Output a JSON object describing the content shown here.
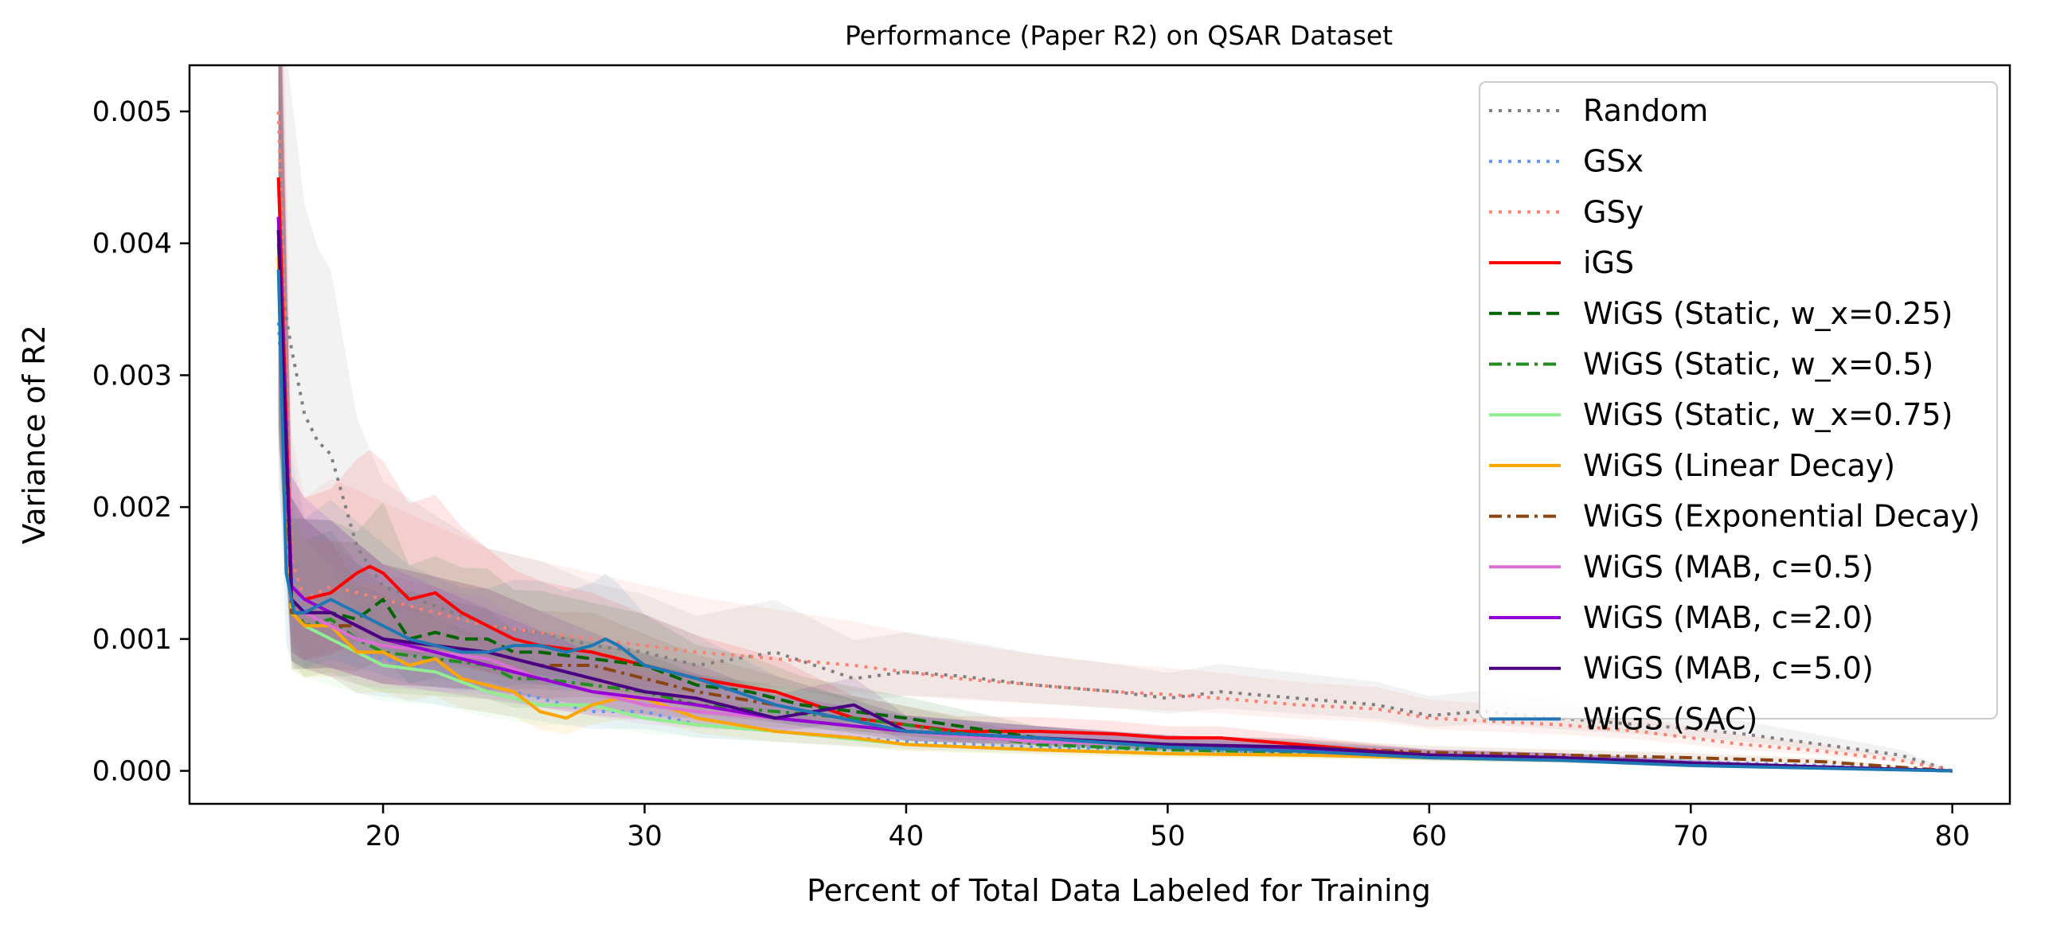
{
  "chart_data": {
    "type": "line",
    "title": "Performance (Paper R2) on QSAR Dataset",
    "xlabel": "Percent of Total Data Labeled for Training",
    "ylabel": "Variance of R2",
    "xlim": [
      12.6,
      82.2
    ],
    "ylim": [
      -0.00025,
      0.00535
    ],
    "xticks": [
      20,
      30,
      40,
      50,
      60,
      70,
      80
    ],
    "xtick_labels": [
      "20",
      "30",
      "40",
      "50",
      "60",
      "70",
      "80"
    ],
    "yticks": [
      0.0,
      0.001,
      0.002,
      0.003,
      0.004,
      0.005
    ],
    "ytick_labels": [
      "0.000",
      "0.001",
      "0.002",
      "0.003",
      "0.004",
      "0.005"
    ],
    "grid": false,
    "legend_position": "top-right",
    "shaded_bands": true,
    "series": [
      {
        "name": "Random",
        "color": "#808080",
        "dash": "dotted",
        "x": [
          16,
          16.5,
          17,
          17.5,
          18,
          19,
          20,
          22,
          24,
          26,
          28,
          30,
          32,
          35,
          38,
          40,
          42,
          45,
          48,
          50,
          52,
          55,
          58,
          60,
          62,
          65,
          68,
          70,
          72,
          75,
          78,
          80
        ],
        "y": [
          0.0038,
          0.0032,
          0.0027,
          0.0025,
          0.0024,
          0.0017,
          0.0014,
          0.00125,
          0.0011,
          0.00105,
          0.00095,
          0.0009,
          0.0008,
          0.0009,
          0.0007,
          0.00075,
          0.00072,
          0.00065,
          0.0006,
          0.00055,
          0.0006,
          0.00055,
          0.0005,
          0.00042,
          0.00045,
          0.0004,
          0.00035,
          0.00032,
          0.00028,
          0.0002,
          0.00012,
          0.0
        ]
      },
      {
        "name": "GSx",
        "color": "#6495ED",
        "dash": "dotted",
        "x": [
          16,
          16.5,
          17,
          18,
          19,
          20,
          22,
          24,
          26,
          28,
          30,
          32,
          35,
          40,
          45,
          50,
          55,
          60,
          65,
          70,
          75,
          80
        ],
        "y": [
          0.0034,
          0.0015,
          0.0012,
          0.0011,
          0.0009,
          0.00085,
          0.00075,
          0.00065,
          0.00055,
          0.00045,
          0.00045,
          0.00035,
          0.0003,
          0.00022,
          0.00018,
          0.00016,
          0.00014,
          0.00011,
          0.0001,
          7e-05,
          4e-05,
          0.0
        ]
      },
      {
        "name": "GSy",
        "color": "#FA8072",
        "dash": "dotted",
        "x": [
          16,
          16.5,
          17,
          18,
          20,
          22,
          24,
          26,
          28,
          30,
          32,
          35,
          38,
          40,
          42,
          45,
          48,
          50,
          52,
          55,
          58,
          60,
          62,
          65,
          68,
          70,
          72,
          75,
          78,
          80
        ],
        "y": [
          0.005,
          0.0016,
          0.0013,
          0.0014,
          0.0013,
          0.0012,
          0.0011,
          0.00105,
          0.001,
          0.00095,
          0.0009,
          0.00085,
          0.0008,
          0.00075,
          0.0007,
          0.00065,
          0.0006,
          0.00058,
          0.00055,
          0.0005,
          0.00047,
          0.0004,
          0.00038,
          0.00035,
          0.0003,
          0.00025,
          0.0002,
          0.00015,
          8e-05,
          0.0
        ]
      },
      {
        "name": "iGS",
        "color": "#FF0000",
        "dash": "solid",
        "x": [
          16,
          16.5,
          17,
          18,
          19,
          19.5,
          20,
          21,
          22,
          23,
          24,
          25,
          26,
          28,
          30,
          32,
          35,
          38,
          40,
          42,
          45,
          48,
          50,
          52,
          55,
          58,
          60,
          65,
          70,
          75,
          80
        ],
        "y": [
          0.0045,
          0.0014,
          0.0013,
          0.00135,
          0.0015,
          0.00155,
          0.0015,
          0.0013,
          0.00135,
          0.0012,
          0.0011,
          0.001,
          0.00095,
          0.0009,
          0.0008,
          0.0007,
          0.0006,
          0.0004,
          0.00035,
          0.0003,
          0.0003,
          0.00028,
          0.00025,
          0.00025,
          0.0002,
          0.00015,
          0.00012,
          0.0001,
          5e-05,
          3e-05,
          0.0
        ]
      },
      {
        "name": "WiGS (Static, w_x=0.25)",
        "color": "#006400",
        "dash": "dashed",
        "x": [
          16,
          16.5,
          17,
          18,
          19,
          20,
          21,
          22,
          23,
          24,
          25,
          26,
          28,
          30,
          32,
          34,
          36,
          38,
          40,
          45,
          50,
          55,
          60,
          65,
          70,
          75,
          80
        ],
        "y": [
          0.0042,
          0.0013,
          0.0012,
          0.0012,
          0.00115,
          0.0013,
          0.001,
          0.00105,
          0.001,
          0.001,
          0.0009,
          0.0009,
          0.00085,
          0.0008,
          0.00065,
          0.0006,
          0.0005,
          0.00045,
          0.0004,
          0.00025,
          0.0002,
          0.00017,
          0.00012,
          0.0001,
          6e-05,
          3e-05,
          0.0
        ]
      },
      {
        "name": "WiGS (Static, w_x=0.5)",
        "color": "#228B22",
        "dash": "dashdot",
        "x": [
          16,
          16.5,
          17,
          18,
          19,
          20,
          22,
          24,
          25,
          26,
          28,
          30,
          32,
          35,
          38,
          40,
          45,
          50,
          55,
          60,
          65,
          70,
          75,
          80
        ],
        "y": [
          0.004,
          0.0013,
          0.0011,
          0.00115,
          0.001,
          0.0009,
          0.00085,
          0.0008,
          0.0007,
          0.0007,
          0.00065,
          0.0006,
          0.0005,
          0.00045,
          0.0004,
          0.00035,
          0.0002,
          0.00016,
          0.00014,
          0.0001,
          8e-05,
          5e-05,
          3e-05,
          0.0
        ]
      },
      {
        "name": "WiGS (Static, w_x=0.75)",
        "color": "#90EE90",
        "dash": "solid",
        "x": [
          16,
          16.5,
          17,
          18,
          19,
          20,
          22,
          24,
          26,
          28,
          30,
          32,
          35,
          40,
          45,
          50,
          55,
          60,
          65,
          70,
          75,
          80
        ],
        "y": [
          0.0039,
          0.0012,
          0.0011,
          0.001,
          0.0009,
          0.0008,
          0.00075,
          0.0006,
          0.0005,
          0.0005,
          0.0004,
          0.00035,
          0.0003,
          0.0002,
          0.00016,
          0.00013,
          0.00012,
          0.0001,
          8e-05,
          5e-05,
          3e-05,
          0.0
        ]
      },
      {
        "name": "WiGS (Linear Decay)",
        "color": "#FFA500",
        "dash": "solid",
        "x": [
          16,
          16.5,
          17,
          18,
          19,
          20,
          21,
          22,
          23,
          24,
          25,
          26,
          27,
          28,
          29,
          30,
          32,
          35,
          38,
          40,
          45,
          50,
          55,
          60,
          65,
          70,
          75,
          80
        ],
        "y": [
          0.0039,
          0.0012,
          0.0011,
          0.0011,
          0.0009,
          0.0009,
          0.0008,
          0.00085,
          0.0007,
          0.00065,
          0.0006,
          0.00045,
          0.0004,
          0.0005,
          0.00055,
          0.00055,
          0.0004,
          0.0003,
          0.00025,
          0.0002,
          0.00016,
          0.00013,
          0.00012,
          0.0001,
          8e-05,
          6e-05,
          3e-05,
          0.0
        ]
      },
      {
        "name": "WiGS (Exponential Decay)",
        "color": "#8B4513",
        "dash": "dashdot",
        "x": [
          16,
          16.5,
          17,
          18,
          19,
          20,
          22,
          24,
          26,
          28,
          30,
          32,
          35,
          40,
          45,
          50,
          55,
          60,
          65,
          70,
          75,
          80
        ],
        "y": [
          0.0041,
          0.0012,
          0.0012,
          0.0011,
          0.0011,
          0.001,
          0.00095,
          0.0009,
          0.0008,
          0.0008,
          0.0007,
          0.0006,
          0.0005,
          0.0003,
          0.00025,
          0.0002,
          0.00018,
          0.00014,
          0.00012,
          0.0001,
          7e-05,
          0.0
        ]
      },
      {
        "name": "WiGS (MAB, c=0.5)",
        "color": "#DA70D6",
        "dash": "solid",
        "x": [
          16,
          16.5,
          17,
          18,
          19,
          20,
          22,
          24,
          26,
          28,
          30,
          32,
          35,
          40,
          45,
          50,
          55,
          60,
          65,
          70,
          75,
          80
        ],
        "y": [
          0.0041,
          0.0013,
          0.0012,
          0.0011,
          0.001,
          0.00095,
          0.0009,
          0.00085,
          0.0007,
          0.0006,
          0.0005,
          0.00045,
          0.0004,
          0.0003,
          0.00022,
          0.0002,
          0.00015,
          0.00012,
          0.0001,
          6e-05,
          3e-05,
          0.0
        ]
      },
      {
        "name": "WiGS (MAB, c=2.0)",
        "color": "#9400D3",
        "dash": "solid",
        "x": [
          16,
          16.5,
          17,
          18,
          19,
          20,
          22,
          24,
          26,
          28,
          30,
          32,
          35,
          40,
          45,
          50,
          55,
          60,
          65,
          70,
          75,
          80
        ],
        "y": [
          0.0042,
          0.0014,
          0.0013,
          0.0012,
          0.0011,
          0.001,
          0.0009,
          0.0008,
          0.0007,
          0.0006,
          0.00055,
          0.0005,
          0.0004,
          0.0003,
          0.00025,
          0.0002,
          0.00016,
          0.00012,
          0.0001,
          6e-05,
          3e-05,
          0.0
        ]
      },
      {
        "name": "WiGS (MAB, c=5.0)",
        "color": "#4B0082",
        "dash": "solid",
        "x": [
          16,
          16.5,
          17,
          18,
          19,
          20,
          22,
          24,
          26,
          28,
          30,
          32,
          35,
          38,
          40,
          45,
          50,
          55,
          60,
          65,
          70,
          75,
          80
        ],
        "y": [
          0.0041,
          0.0013,
          0.0012,
          0.0012,
          0.0011,
          0.001,
          0.00095,
          0.0009,
          0.0008,
          0.0007,
          0.0006,
          0.00055,
          0.0004,
          0.0005,
          0.0003,
          0.00025,
          0.0002,
          0.00018,
          0.00012,
          0.0001,
          6e-05,
          3e-05,
          0.0
        ]
      },
      {
        "name": "WiGS (SAC)",
        "color": "#1F77B4",
        "dash": "solid",
        "x": [
          16,
          16.3,
          16.6,
          17,
          18,
          19,
          20,
          21,
          22,
          23,
          24,
          25,
          26,
          27,
          28,
          28.5,
          29,
          30,
          32,
          35,
          40,
          45,
          50,
          55,
          60,
          65,
          70,
          75,
          80
        ],
        "y": [
          0.0038,
          0.0015,
          0.0012,
          0.0012,
          0.0013,
          0.0012,
          0.0011,
          0.001,
          0.00095,
          0.0009,
          0.0009,
          0.00095,
          0.00095,
          0.0009,
          0.00095,
          0.001,
          0.00095,
          0.0008,
          0.0007,
          0.0005,
          0.0003,
          0.00025,
          0.00018,
          0.00015,
          0.0001,
          8e-05,
          4e-05,
          2e-05,
          0.0
        ]
      }
    ]
  }
}
